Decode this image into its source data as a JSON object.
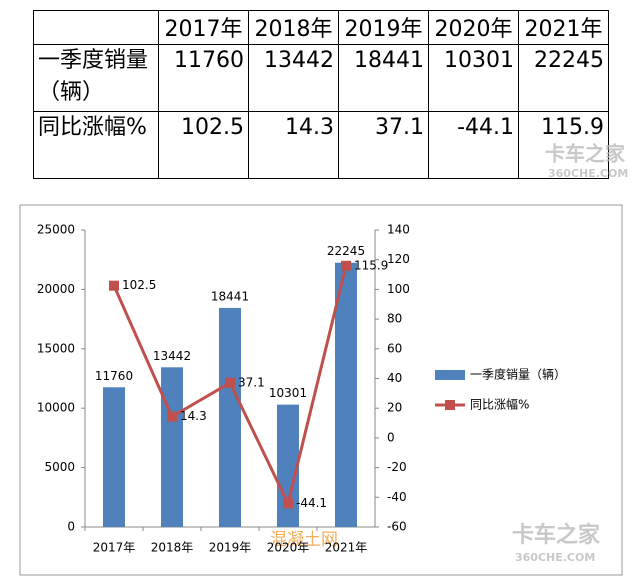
{
  "table": {
    "columns": [
      "2017年",
      "2018年",
      "2019年",
      "2020年",
      "2021年"
    ],
    "rows": [
      {
        "label": "一季度销量（辆）",
        "values": [
          11760,
          13442,
          18441,
          10301,
          22245
        ]
      },
      {
        "label": "同比涨幅%",
        "values": [
          102.5,
          14.3,
          37.1,
          -44.1,
          115.9
        ]
      }
    ]
  },
  "chart_data": {
    "type": "combo",
    "categories": [
      "2017年",
      "2018年",
      "2019年",
      "2020年",
      "2021年"
    ],
    "series": [
      {
        "name": "一季度销量（辆）",
        "type": "bar",
        "color": "#4f81bd",
        "values": [
          11760,
          13442,
          18441,
          10301,
          22245
        ]
      },
      {
        "name": "同比涨幅%",
        "type": "line",
        "color": "#c0504d",
        "axis": "y2",
        "values": [
          102.5,
          14.3,
          37.1,
          -44.1,
          115.9
        ]
      }
    ],
    "ylim": [
      0,
      25000
    ],
    "yticks": [
      0,
      5000,
      10000,
      15000,
      20000,
      25000
    ],
    "y2lim": [
      -60,
      140
    ],
    "y2ticks": [
      -60,
      -40,
      -20,
      0,
      20,
      40,
      60,
      80,
      100,
      120,
      140
    ],
    "data_labels": true,
    "legend": "right"
  },
  "watermarks": [
    "卡车之家",
    "360CHE.COM",
    "混凝土网"
  ]
}
